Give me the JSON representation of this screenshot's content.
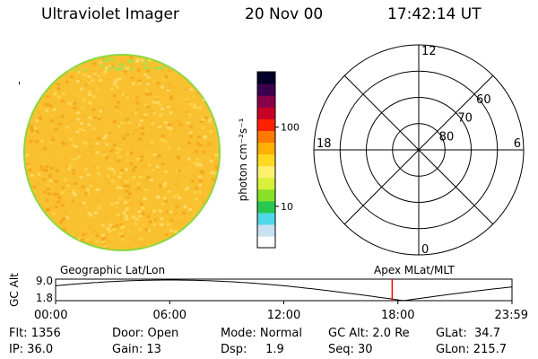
{
  "header": {
    "title": "Ultraviolet Imager",
    "date": "20 Nov 00",
    "time": "17:42:14 UT"
  },
  "colorbar": {
    "unit_label": "photon cm⁻²s⁻¹",
    "ticks": [
      "100",
      "10"
    ],
    "tick_values": [
      100,
      10
    ],
    "range": [
      3,
      500
    ],
    "scale": "log",
    "colors": [
      "#ffffff",
      "#c8e0f0",
      "#50d8e8",
      "#28c850",
      "#88e028",
      "#d8f038",
      "#fff070",
      "#ffd820",
      "#ffb000",
      "#ff7800",
      "#ff2000",
      "#c80028",
      "#880048",
      "#3c0050",
      "#000028"
    ]
  },
  "image": {
    "edge_mark": "'",
    "fill_colors": [
      "#f7b828",
      "#f9c838",
      "#fbd850",
      "#f3a018",
      "#fce070"
    ]
  },
  "polar_grid": {
    "top_label": "12",
    "left_label": "18",
    "right_label": "6",
    "bottom_label": "0",
    "lat_labels": [
      "60",
      "70",
      "80"
    ],
    "lat_values": [
      60,
      70,
      80
    ]
  },
  "altitude_plot": {
    "ylabel": "GC Alt",
    "yticks": [
      "9.0",
      "1.8"
    ],
    "left_caption": "Geographic Lat/Lon",
    "right_caption": "Apex MLat/MLT",
    "xticks": [
      "00:00",
      "06:00",
      "12:00",
      "18:00",
      "23:59"
    ],
    "current_time": "17:42",
    "current_time_hours": 17.7,
    "marker_color": "#ff0000"
  },
  "info": {
    "flt": "Flt: 1356",
    "ip": "IP: 36.0",
    "door": "Door: Open",
    "gain": "Gain: 13",
    "mode": "Mode: Normal",
    "dsp": "Dsp:     1.9",
    "gc_alt": "GC Alt: 2.0 Re",
    "seq": "Seq: 30",
    "glat": "GLat:  34.7",
    "glon": "GLon: 215.7"
  }
}
